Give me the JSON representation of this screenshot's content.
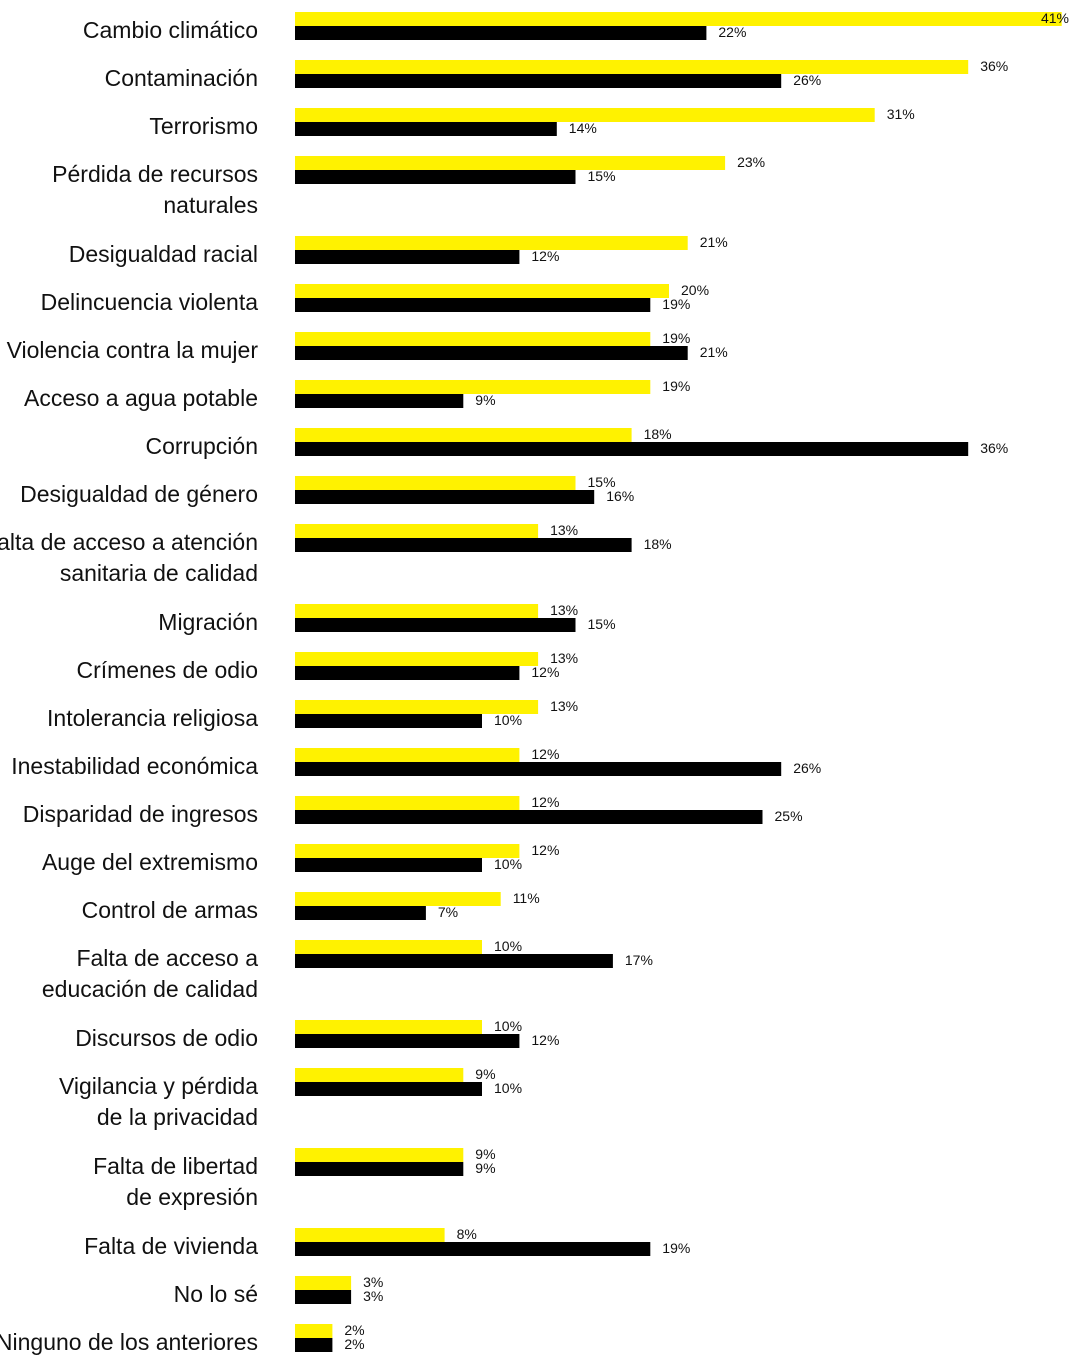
{
  "chart_data": {
    "type": "bar",
    "orientation": "horizontal",
    "categories": [
      "Cambio climático",
      "Contaminación",
      "Terrorismo",
      "Pérdida de recursos naturales",
      "Desigualdad racial",
      "Delincuencia violenta",
      "Violencia contra la mujer",
      "Acceso a agua potable",
      "Corrupción",
      "Desigualdad de género",
      "Falta de acceso a atención sanitaria de calidad",
      "Migración",
      "Crímenes de odio",
      "Intolerancia religiosa",
      "Inestabilidad económica",
      "Disparidad de ingresos",
      "Auge del extremismo",
      "Control de armas",
      "Falta de acceso a educación de calidad",
      "Discursos de odio",
      "Vigilancia y pérdida de la privacidad",
      "Falta de libertad de expresión",
      "Falta de vivienda",
      "No lo sé",
      "Ninguno de los anteriores"
    ],
    "category_lines": [
      [
        "Cambio climático"
      ],
      [
        "Contaminación"
      ],
      [
        "Terrorismo"
      ],
      [
        "Pérdida de recursos",
        "naturales"
      ],
      [
        "Desigualdad racial"
      ],
      [
        "Delincuencia violenta"
      ],
      [
        "Violencia contra la mujer"
      ],
      [
        "Acceso a agua potable"
      ],
      [
        "Corrupción"
      ],
      [
        "Desigualdad de género"
      ],
      [
        "Falta de acceso a atención",
        "sanitaria de calidad"
      ],
      [
        "Migración"
      ],
      [
        "Crímenes de odio"
      ],
      [
        "Intolerancia religiosa"
      ],
      [
        "Inestabilidad económica"
      ],
      [
        "Disparidad de ingresos"
      ],
      [
        "Auge del extremismo"
      ],
      [
        "Control de armas"
      ],
      [
        "Falta de acceso a",
        "educación de calidad"
      ],
      [
        "Discursos de odio"
      ],
      [
        "Vigilancia y pérdida",
        "de la privacidad"
      ],
      [
        "Falta de libertad",
        "de expresión"
      ],
      [
        "Falta de vivienda"
      ],
      [
        "No lo sé"
      ],
      [
        "Ninguno de los anteriores"
      ]
    ],
    "series": [
      {
        "color": "#fff200",
        "values": [
          41,
          36,
          31,
          23,
          21,
          20,
          19,
          19,
          18,
          15,
          13,
          13,
          13,
          13,
          12,
          12,
          12,
          11,
          10,
          10,
          9,
          9,
          8,
          3,
          2
        ],
        "labels": [
          "41%",
          "36%",
          "31%",
          "23%",
          "21%",
          "20%",
          "19%",
          "19%",
          "18%",
          "15%",
          "13%",
          "13%",
          "13%",
          "13%",
          "12%",
          "12%",
          "12%",
          "11%",
          "10%",
          "10%",
          "9%",
          "9%",
          "8%",
          "3%",
          "2%"
        ]
      },
      {
        "color": "#000000",
        "values": [
          22,
          26,
          14,
          15,
          12,
          19,
          21,
          9,
          36,
          16,
          18,
          15,
          12,
          10,
          26,
          25,
          10,
          7,
          17,
          12,
          10,
          9,
          19,
          3,
          2
        ],
        "labels": [
          "22%",
          "26%",
          "14%",
          "15%",
          "12%",
          "19%",
          "21%",
          "9%",
          "36%",
          "16%",
          "18%",
          "15%",
          "12%",
          "10%",
          "26%",
          "25%",
          "10%",
          "7%",
          "17%",
          "12%",
          "10%",
          "9%",
          "19%",
          "3%",
          "2%"
        ]
      }
    ],
    "xlim": [
      0,
      41
    ],
    "grid": false,
    "legend": "none"
  }
}
